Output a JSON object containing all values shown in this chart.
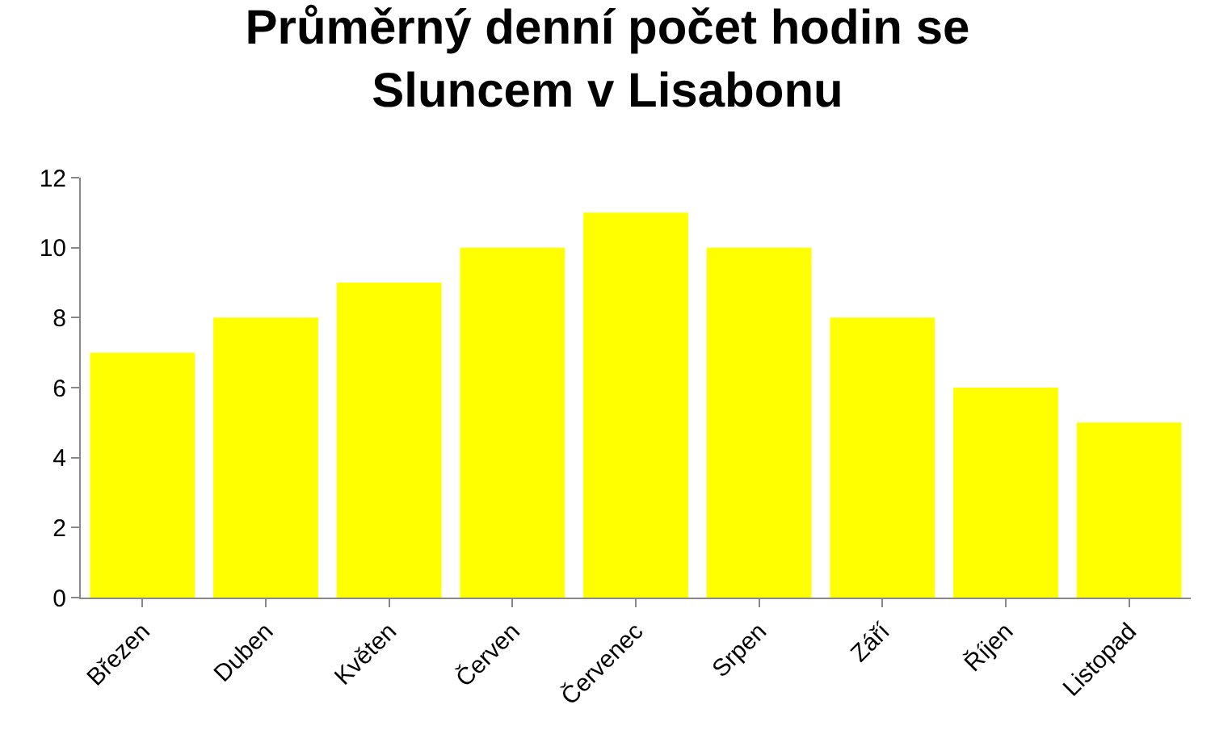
{
  "chart_data": {
    "type": "bar",
    "title": "Průměrný denní počet hodin se\nSluncem v Lisabonu",
    "categories": [
      "Březen",
      "Duben",
      "Květen",
      "Červen",
      "Červenec",
      "Srpen",
      "Září",
      "Říjen",
      "Listopad"
    ],
    "values": [
      7,
      8,
      9,
      10,
      11,
      10,
      8,
      6,
      5
    ],
    "color": "#ffff00",
    "ylim": [
      0,
      12
    ],
    "yticks": [
      0,
      2,
      4,
      6,
      8,
      10,
      12
    ],
    "legend": false
  }
}
